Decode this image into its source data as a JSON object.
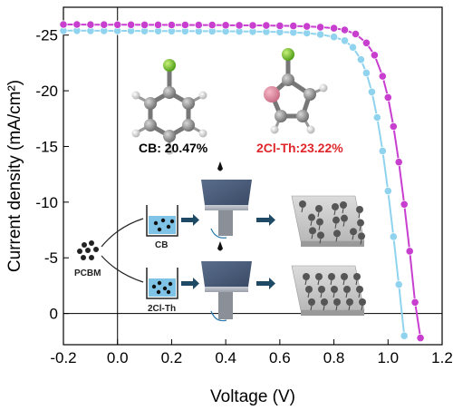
{
  "chart_data": {
    "type": "line",
    "xlabel": "Voltage (V)",
    "ylabel": "Current density (mA/cm²)",
    "xlim": [
      -0.2,
      1.2
    ],
    "ylim": [
      2.8,
      -27.5
    ],
    "x_ticks": [
      "-0.2",
      "0.0",
      "0.2",
      "0.4",
      "0.6",
      "0.8",
      "1.0",
      "1.2"
    ],
    "y_ticks": [
      "-25",
      "-20",
      "-15",
      "-10",
      "-5",
      "0"
    ],
    "grid": false,
    "series": [
      {
        "name": "CB: 20.47%",
        "color": "#8fd3ee",
        "points": [
          [
            -0.2,
            -25.4
          ],
          [
            -0.15,
            -25.4
          ],
          [
            -0.1,
            -25.39
          ],
          [
            -0.05,
            -25.39
          ],
          [
            0.0,
            -25.38
          ],
          [
            0.05,
            -25.38
          ],
          [
            0.1,
            -25.37
          ],
          [
            0.15,
            -25.37
          ],
          [
            0.2,
            -25.36
          ],
          [
            0.25,
            -25.36
          ],
          [
            0.3,
            -25.35
          ],
          [
            0.35,
            -25.35
          ],
          [
            0.4,
            -25.34
          ],
          [
            0.45,
            -25.33
          ],
          [
            0.5,
            -25.32
          ],
          [
            0.55,
            -25.3
          ],
          [
            0.6,
            -25.28
          ],
          [
            0.65,
            -25.24
          ],
          [
            0.7,
            -25.18
          ],
          [
            0.75,
            -25.06
          ],
          [
            0.8,
            -24.84
          ],
          [
            0.84,
            -24.5
          ],
          [
            0.87,
            -23.9
          ],
          [
            0.9,
            -22.8
          ],
          [
            0.92,
            -21.6
          ],
          [
            0.94,
            -19.9
          ],
          [
            0.96,
            -17.6
          ],
          [
            0.98,
            -14.6
          ],
          [
            1.0,
            -11.0
          ],
          [
            1.02,
            -6.9
          ],
          [
            1.04,
            -2.6
          ],
          [
            1.06,
            2.0
          ]
        ]
      },
      {
        "name": "2Cl-Th:23.22%",
        "color": "#c83fd0",
        "points": [
          [
            -0.2,
            -25.95
          ],
          [
            -0.15,
            -25.95
          ],
          [
            -0.1,
            -25.94
          ],
          [
            -0.05,
            -25.94
          ],
          [
            0.0,
            -25.93
          ],
          [
            0.05,
            -25.93
          ],
          [
            0.1,
            -25.92
          ],
          [
            0.15,
            -25.92
          ],
          [
            0.2,
            -25.91
          ],
          [
            0.25,
            -25.91
          ],
          [
            0.3,
            -25.9
          ],
          [
            0.35,
            -25.9
          ],
          [
            0.4,
            -25.89
          ],
          [
            0.45,
            -25.88
          ],
          [
            0.5,
            -25.87
          ],
          [
            0.55,
            -25.86
          ],
          [
            0.6,
            -25.84
          ],
          [
            0.65,
            -25.82
          ],
          [
            0.7,
            -25.78
          ],
          [
            0.75,
            -25.72
          ],
          [
            0.8,
            -25.62
          ],
          [
            0.84,
            -25.46
          ],
          [
            0.88,
            -25.1
          ],
          [
            0.92,
            -24.3
          ],
          [
            0.95,
            -23.2
          ],
          [
            0.98,
            -21.3
          ],
          [
            1.0,
            -19.4
          ],
          [
            1.02,
            -16.8
          ],
          [
            1.04,
            -13.6
          ],
          [
            1.06,
            -9.8
          ],
          [
            1.08,
            -5.6
          ],
          [
            1.1,
            -1.0
          ],
          [
            1.12,
            2.2
          ]
        ]
      }
    ],
    "annotations": [
      "CB: 20.47%",
      "2Cl-Th:23.22%",
      "PCBM",
      "CB",
      "2Cl-Th"
    ]
  },
  "colors": {
    "cb": "#8fd3ee",
    "clth": "#c83fd0",
    "clth_label": "#e0262a",
    "cb_label": "#000000"
  }
}
